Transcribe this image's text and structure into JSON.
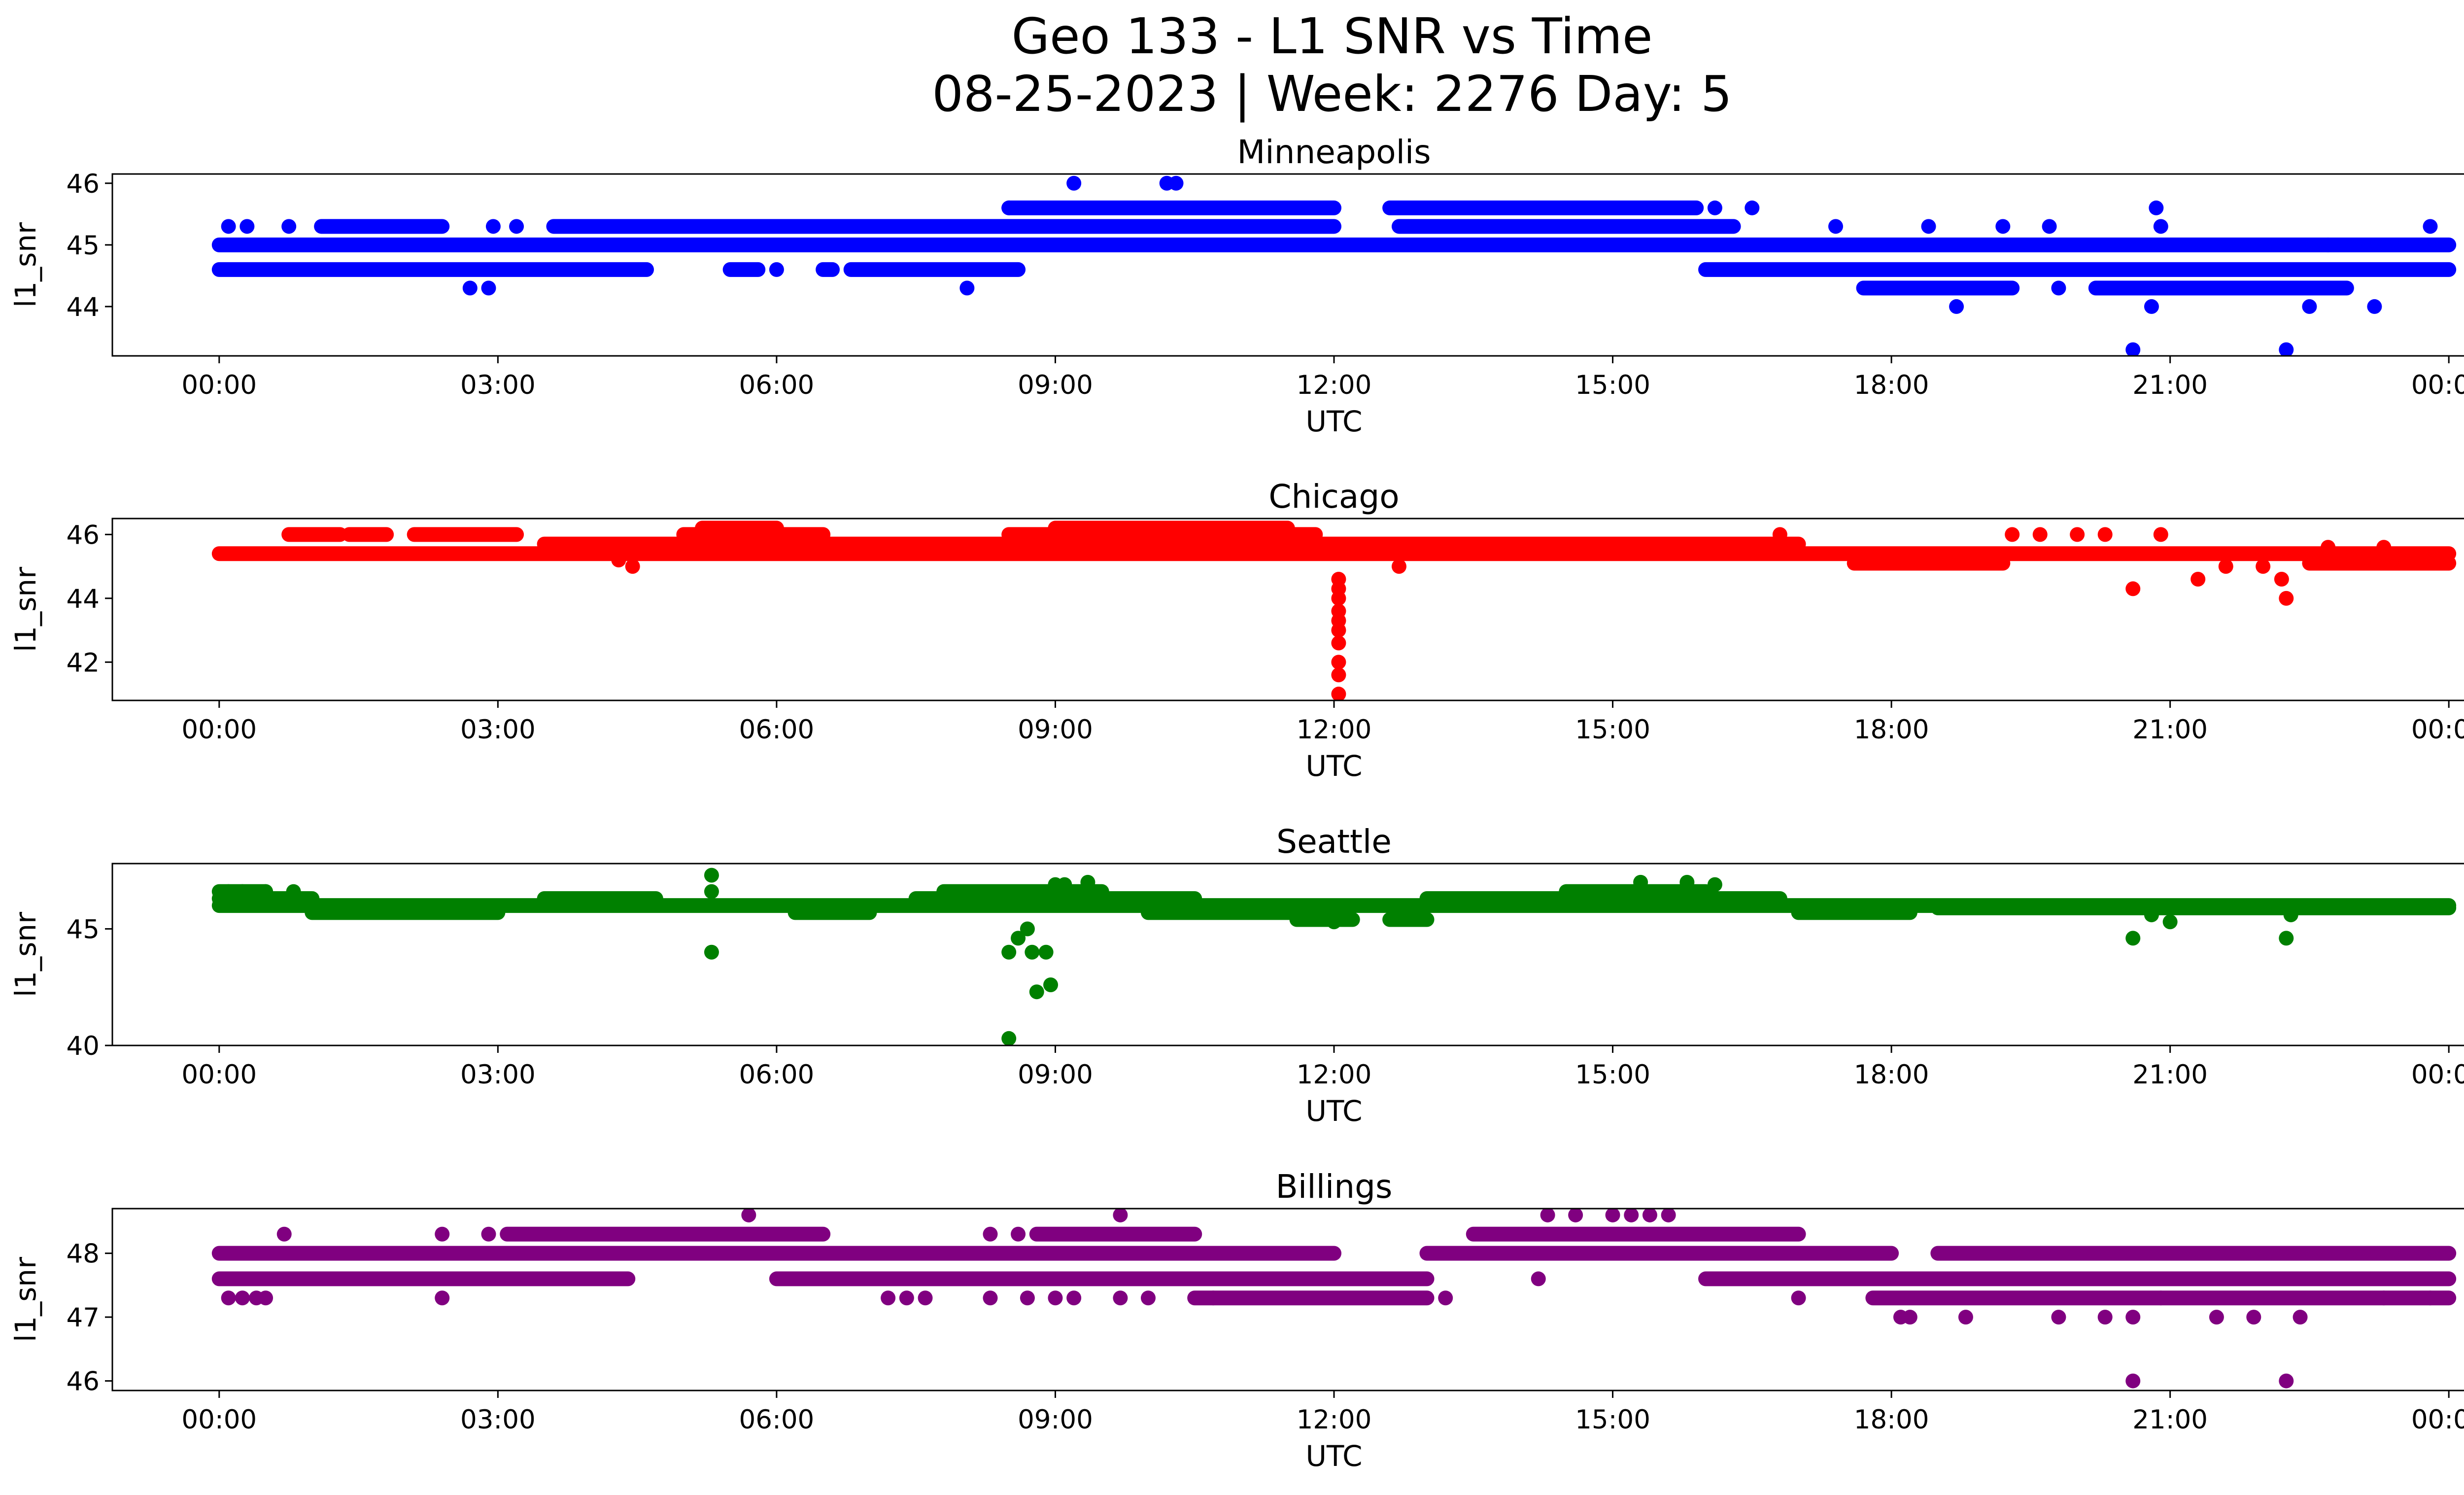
{
  "figure": {
    "title_line1": "Geo 133 - L1 SNR vs Time",
    "title_line2": "08-25-2023 | Week: 2276 Day: 5"
  },
  "chart_data": [
    {
      "type": "scatter",
      "title": "Minneapolis",
      "xlabel": "UTC",
      "ylabel": "l1_snr",
      "color": "#0000ff",
      "x_tick_labels": [
        "00:00",
        "03:00",
        "06:00",
        "09:00",
        "12:00",
        "15:00",
        "18:00",
        "21:00",
        "00:00"
      ],
      "x_tick_hours": [
        0,
        3,
        6,
        9,
        12,
        15,
        18,
        21,
        24
      ],
      "xlim_hours": [
        -1.15,
        25.15
      ],
      "ylim": [
        43.2,
        46.15
      ],
      "y_ticks": [
        44,
        45,
        46
      ],
      "bands": [
        {
          "y": 45.0,
          "segments": [
            [
              0,
              24
            ]
          ]
        },
        {
          "y": 44.6,
          "segments": [
            [
              0,
              4.6
            ],
            [
              5.5,
              5.8
            ],
            [
              6.5,
              6.6
            ],
            [
              6.8,
              8.6
            ],
            [
              16.0,
              24
            ]
          ]
        },
        {
          "y": 45.3,
          "segments": [
            [
              1.1,
              2.4
            ],
            [
              3.6,
              12.0
            ],
            [
              12.7,
              16.3
            ]
          ]
        },
        {
          "y": 45.6,
          "segments": [
            [
              8.5,
              12.0
            ],
            [
              12.6,
              15.9
            ]
          ]
        },
        {
          "y": 44.3,
          "segments": [
            [
              17.7,
              19.3
            ],
            [
              20.2,
              22.9
            ]
          ]
        }
      ],
      "points": [
        [
          0.1,
          45.3
        ],
        [
          0.3,
          45.3
        ],
        [
          0.75,
          45.3
        ],
        [
          2.7,
          44.3
        ],
        [
          2.9,
          44.3
        ],
        [
          2.95,
          45.3
        ],
        [
          3.2,
          45.3
        ],
        [
          6.0,
          44.6
        ],
        [
          8.05,
          44.3
        ],
        [
          8.5,
          45.6
        ],
        [
          9.2,
          46.0
        ],
        [
          10.2,
          46.0
        ],
        [
          10.3,
          46.0
        ],
        [
          16.1,
          45.6
        ],
        [
          16.5,
          45.6
        ],
        [
          17.4,
          45.3
        ],
        [
          18.4,
          45.3
        ],
        [
          18.7,
          44.0
        ],
        [
          19.2,
          45.3
        ],
        [
          19.7,
          45.3
        ],
        [
          19.8,
          44.3
        ],
        [
          20.6,
          43.3
        ],
        [
          20.8,
          44.0
        ],
        [
          20.85,
          45.6
        ],
        [
          20.9,
          45.3
        ],
        [
          22.25,
          43.3
        ],
        [
          22.5,
          44.0
        ],
        [
          22.7,
          45.0
        ],
        [
          23.2,
          44.0
        ],
        [
          23.8,
          45.3
        ]
      ]
    },
    {
      "type": "scatter",
      "title": "Chicago",
      "xlabel": "UTC",
      "ylabel": "l1_snr",
      "color": "#ff0000",
      "x_tick_labels": [
        "00:00",
        "03:00",
        "06:00",
        "09:00",
        "12:00",
        "15:00",
        "18:00",
        "21:00",
        "00:00"
      ],
      "x_tick_hours": [
        0,
        3,
        6,
        9,
        12,
        15,
        18,
        21,
        24
      ],
      "xlim_hours": [
        -1.15,
        25.15
      ],
      "ylim": [
        40.8,
        46.5
      ],
      "y_ticks": [
        42,
        44,
        46
      ],
      "bands": [
        {
          "y": 45.4,
          "segments": [
            [
              0,
              24
            ]
          ]
        },
        {
          "y": 45.7,
          "segments": [
            [
              3.5,
              17.0
            ]
          ]
        },
        {
          "y": 46.0,
          "segments": [
            [
              0.75,
              1.3
            ],
            [
              1.4,
              1.8
            ],
            [
              2.1,
              3.2
            ],
            [
              5.0,
              6.5
            ],
            [
              8.5,
              11.8
            ]
          ]
        },
        {
          "y": 46.2,
          "segments": [
            [
              5.2,
              6.0
            ],
            [
              9.0,
              11.5
            ]
          ]
        },
        {
          "y": 45.1,
          "segments": [
            [
              17.6,
              19.2
            ],
            [
              22.5,
              24
            ]
          ]
        }
      ],
      "points": [
        [
          4.45,
          45.0
        ],
        [
          4.3,
          45.2
        ],
        [
          12.05,
          44.6
        ],
        [
          12.05,
          44.3
        ],
        [
          12.05,
          44.0
        ],
        [
          12.05,
          43.6
        ],
        [
          12.05,
          43.3
        ],
        [
          12.05,
          43.0
        ],
        [
          12.05,
          42.6
        ],
        [
          12.05,
          42.0
        ],
        [
          12.05,
          41.6
        ],
        [
          12.05,
          41.0
        ],
        [
          12.7,
          45.0
        ],
        [
          16.8,
          46.0
        ],
        [
          19.3,
          46.0
        ],
        [
          19.6,
          46.0
        ],
        [
          20.0,
          46.0
        ],
        [
          20.3,
          46.0
        ],
        [
          20.6,
          44.3
        ],
        [
          20.9,
          46.0
        ],
        [
          21.3,
          44.6
        ],
        [
          21.6,
          45.0
        ],
        [
          22.0,
          45.0
        ],
        [
          22.2,
          44.6
        ],
        [
          22.25,
          44.0
        ],
        [
          22.7,
          45.6
        ],
        [
          23.3,
          45.6
        ]
      ]
    },
    {
      "type": "scatter",
      "title": "Seattle",
      "xlabel": "UTC",
      "ylabel": "l1_snr",
      "color": "#008000",
      "x_tick_labels": [
        "00:00",
        "03:00",
        "06:00",
        "09:00",
        "12:00",
        "15:00",
        "18:00",
        "21:00",
        "00:00"
      ],
      "x_tick_hours": [
        0,
        3,
        6,
        9,
        12,
        15,
        18,
        21,
        24
      ],
      "xlim_hours": [
        -1.15,
        25.15
      ],
      "ylim": [
        40.0,
        47.8
      ],
      "y_ticks": [
        40,
        45
      ],
      "bands": [
        {
          "y": 46.0,
          "segments": [
            [
              0,
              24
            ]
          ]
        },
        {
          "y": 46.3,
          "segments": [
            [
              0,
              1.0
            ],
            [
              3.5,
              4.7
            ],
            [
              7.5,
              10.5
            ],
            [
              13.0,
              16.8
            ]
          ]
        },
        {
          "y": 45.7,
          "segments": [
            [
              1.0,
              3.0
            ],
            [
              6.2,
              7.0
            ],
            [
              10.0,
              12.0
            ],
            [
              17.0,
              18.2
            ]
          ]
        },
        {
          "y": 46.6,
          "segments": [
            [
              0,
              0.5
            ],
            [
              7.8,
              9.5
            ],
            [
              14.5,
              16.0
            ]
          ]
        },
        {
          "y": 45.4,
          "segments": [
            [
              11.6,
              12.2
            ],
            [
              12.6,
              13.0
            ]
          ]
        },
        {
          "y": 45.9,
          "segments": [
            [
              18.5,
              24
            ]
          ]
        }
      ],
      "points": [
        [
          0.1,
          46.6
        ],
        [
          0.25,
          46.6
        ],
        [
          0.5,
          46.6
        ],
        [
          0.8,
          46.6
        ],
        [
          5.3,
          47.3
        ],
        [
          5.3,
          46.6
        ],
        [
          5.3,
          44.0
        ],
        [
          8.5,
          40.3
        ],
        [
          8.5,
          44.0
        ],
        [
          8.6,
          44.6
        ],
        [
          8.7,
          45.0
        ],
        [
          8.75,
          44.0
        ],
        [
          8.8,
          42.3
        ],
        [
          8.9,
          44.0
        ],
        [
          8.95,
          42.6
        ],
        [
          9.0,
          46.9
        ],
        [
          9.1,
          46.9
        ],
        [
          9.35,
          47.0
        ],
        [
          12.0,
          45.3
        ],
        [
          15.3,
          47.0
        ],
        [
          15.8,
          47.0
        ],
        [
          16.1,
          46.9
        ],
        [
          20.6,
          44.6
        ],
        [
          20.8,
          45.6
        ],
        [
          21.0,
          45.3
        ],
        [
          22.25,
          44.6
        ],
        [
          22.3,
          45.6
        ]
      ]
    },
    {
      "type": "scatter",
      "title": "Billings",
      "xlabel": "UTC",
      "ylabel": "l1_snr",
      "color": "#800080",
      "x_tick_labels": [
        "00:00",
        "03:00",
        "06:00",
        "09:00",
        "12:00",
        "15:00",
        "18:00",
        "21:00",
        "00:00"
      ],
      "x_tick_hours": [
        0,
        3,
        6,
        9,
        12,
        15,
        18,
        21,
        24
      ],
      "xlim_hours": [
        -1.15,
        25.15
      ],
      "ylim": [
        45.85,
        48.7
      ],
      "y_ticks": [
        46,
        47,
        48
      ],
      "bands": [
        {
          "y": 48.0,
          "segments": [
            [
              0,
              12.0
            ],
            [
              13.0,
              18.0
            ],
            [
              18.5,
              24
            ]
          ]
        },
        {
          "y": 47.6,
          "segments": [
            [
              0,
              4.4
            ],
            [
              6.0,
              13.0
            ],
            [
              16.0,
              24
            ]
          ]
        },
        {
          "y": 48.3,
          "segments": [
            [
              3.1,
              6.5
            ],
            [
              8.8,
              10.5
            ],
            [
              13.5,
              17.0
            ]
          ]
        },
        {
          "y": 47.3,
          "segments": [
            [
              10.5,
              13.0
            ],
            [
              17.8,
              24
            ]
          ]
        }
      ],
      "points": [
        [
          0.1,
          47.3
        ],
        [
          0.25,
          47.3
        ],
        [
          0.4,
          47.3
        ],
        [
          0.5,
          47.3
        ],
        [
          0.7,
          48.3
        ],
        [
          2.4,
          47.3
        ],
        [
          2.4,
          48.3
        ],
        [
          2.9,
          48.3
        ],
        [
          5.7,
          48.6
        ],
        [
          7.2,
          47.3
        ],
        [
          7.4,
          47.3
        ],
        [
          7.6,
          47.3
        ],
        [
          8.3,
          48.3
        ],
        [
          8.6,
          48.3
        ],
        [
          8.3,
          47.3
        ],
        [
          8.7,
          47.3
        ],
        [
          9.0,
          47.3
        ],
        [
          9.2,
          47.3
        ],
        [
          9.7,
          47.3
        ],
        [
          9.7,
          48.6
        ],
        [
          10.0,
          47.3
        ],
        [
          10.7,
          47.3
        ],
        [
          13.2,
          47.3
        ],
        [
          14.2,
          47.6
        ],
        [
          14.3,
          48.6
        ],
        [
          14.6,
          48.6
        ],
        [
          15.0,
          48.6
        ],
        [
          15.2,
          48.6
        ],
        [
          15.4,
          48.6
        ],
        [
          15.6,
          48.6
        ],
        [
          17.0,
          47.3
        ],
        [
          18.1,
          47.0
        ],
        [
          18.2,
          47.0
        ],
        [
          18.8,
          47.0
        ],
        [
          19.8,
          47.0
        ],
        [
          20.3,
          47.0
        ],
        [
          20.6,
          46.0
        ],
        [
          20.6,
          47.0
        ],
        [
          20.9,
          47.3
        ],
        [
          21.5,
          47.0
        ],
        [
          21.9,
          47.0
        ],
        [
          22.25,
          46.0
        ],
        [
          22.4,
          47.0
        ],
        [
          23.3,
          47.3
        ],
        [
          23.8,
          47.3
        ]
      ]
    }
  ]
}
